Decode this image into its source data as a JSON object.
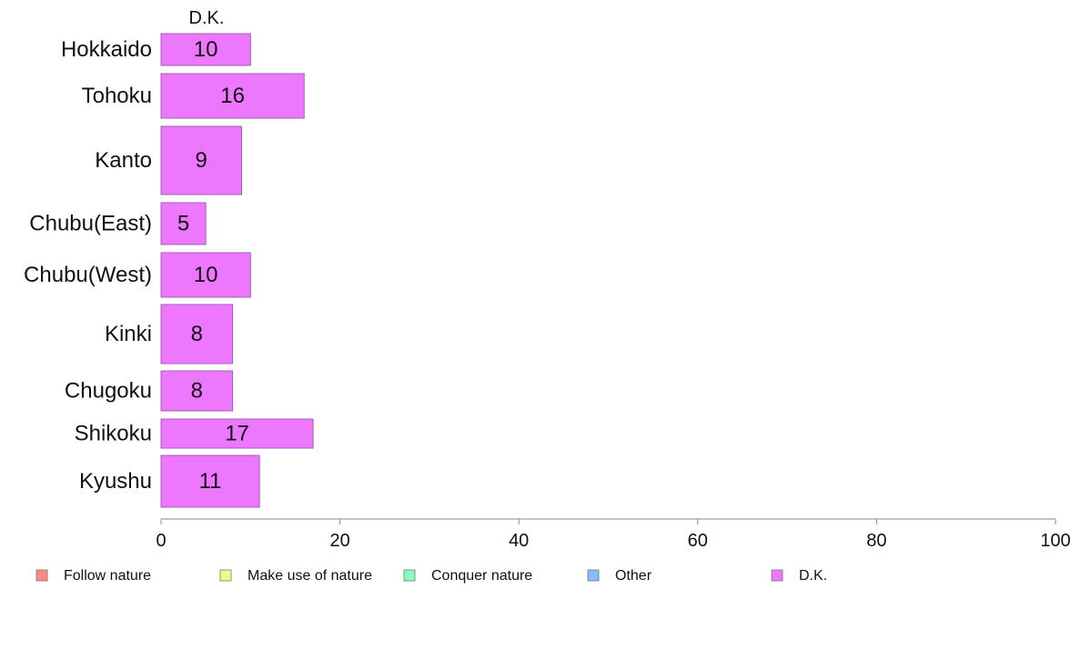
{
  "chart_data": {
    "type": "bar",
    "orientation": "horizontal",
    "stacked": true,
    "series_title": "D.K.",
    "categories": [
      "Hokkaido",
      "Tohoku",
      "Kanto",
      "Chubu(East)",
      "Chubu(West)",
      "Kinki",
      "Chugoku",
      "Shikoku",
      "Kyushu"
    ],
    "series": [
      {
        "name": "D.K.",
        "color": "#ee77ff",
        "values": [
          10,
          16,
          9,
          5,
          10,
          8,
          8,
          17,
          11
        ]
      }
    ],
    "xlim": [
      0,
      100
    ],
    "xticks": [
      "0",
      "20",
      "40",
      "60",
      "80",
      "100"
    ],
    "grid": false,
    "legend_position": "bottom",
    "legend": [
      {
        "label": "Follow nature",
        "color": "#ff8888"
      },
      {
        "label": "Make use of nature",
        "color": "#eeff88"
      },
      {
        "label": "Conquer nature",
        "color": "#88ffbb"
      },
      {
        "label": "Other",
        "color": "#88bbff"
      },
      {
        "label": "D.K.",
        "color": "#ee77ff"
      }
    ]
  }
}
